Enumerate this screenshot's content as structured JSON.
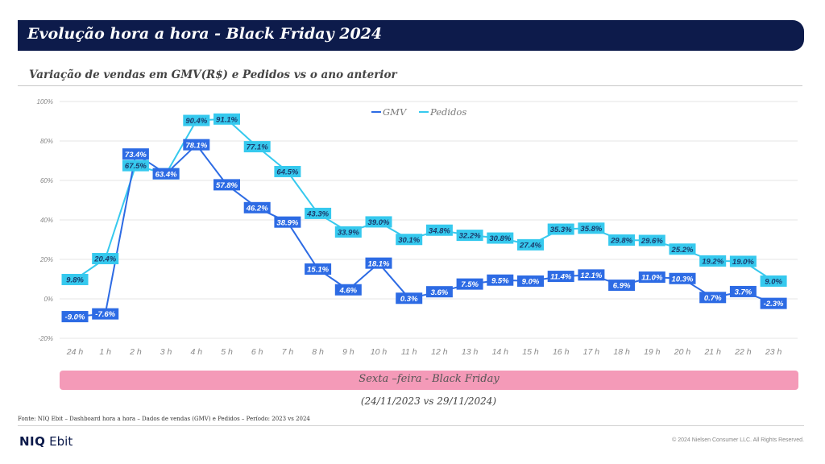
{
  "header": {
    "title": "Evolução hora a hora - Black Friday 2024",
    "subtitle": "Variação de vendas em GMV(R$) e Pedidos vs o ano anterior"
  },
  "chart_data": {
    "type": "line",
    "categories": [
      "24 h",
      "1 h",
      "2 h",
      "3 h",
      "4 h",
      "5 h",
      "6 h",
      "7 h",
      "8 h",
      "9 h",
      "10 h",
      "11 h",
      "12 h",
      "13 h",
      "14 h",
      "15 h",
      "16 h",
      "17 h",
      "18 h",
      "19 h",
      "20 h",
      "21 h",
      "22 h",
      "23 h"
    ],
    "series": [
      {
        "name": "GMV",
        "color": "#2d6be4",
        "values": [
          -9.0,
          -7.6,
          73.4,
          63.4,
          78.1,
          57.8,
          46.2,
          38.9,
          15.1,
          4.6,
          18.1,
          0.3,
          3.6,
          7.5,
          9.5,
          9.0,
          11.4,
          12.1,
          6.9,
          11.0,
          10.3,
          0.7,
          3.7,
          -2.3
        ],
        "labels": [
          "-9.0%",
          "-7.6%",
          "73.4%",
          "63.4%",
          "78.1%",
          "57.8%",
          "46.2%",
          "38.9%",
          "15.1%",
          "4.6%",
          "18.1%",
          "0.3%",
          "3.6%",
          "7.5%",
          "9.5%",
          "9.0%",
          "11.4%",
          "12.1%",
          "6.9%",
          "11.0%",
          "10.3%",
          "0.7%",
          "3.7%",
          "-2.3%"
        ]
      },
      {
        "name": "Pedidos",
        "color": "#36c9ee",
        "values": [
          9.8,
          20.4,
          67.5,
          63.4,
          90.4,
          91.1,
          77.1,
          64.5,
          43.3,
          33.9,
          39.0,
          30.1,
          34.8,
          32.2,
          30.8,
          27.4,
          35.3,
          35.8,
          29.8,
          29.6,
          25.2,
          19.2,
          19.0,
          9.0
        ],
        "labels": [
          "9.8%",
          "20.4%",
          "67.5%",
          "63.4%",
          "90.4%",
          "91.1%",
          "77.1%",
          "64.5%",
          "43.3%",
          "33.9%",
          "39.0%",
          "30.1%",
          "34.8%",
          "32.2%",
          "30.8%",
          "27.4%",
          "35.3%",
          "35.8%",
          "29.8%",
          "29.6%",
          "25.2%",
          "19.2%",
          "19.0%",
          "9.0%"
        ]
      }
    ],
    "ylim": [
      -20,
      100
    ],
    "y_ticks": [
      -20,
      0,
      20,
      40,
      60,
      80,
      100
    ],
    "y_tick_labels": [
      "-20%",
      "0%",
      "20%",
      "40%",
      "60%",
      "80%",
      "100%"
    ],
    "grid": true,
    "legend": "top-center"
  },
  "band": {
    "label": "Sexta –feira - Black Friday",
    "color": "#f49ab8"
  },
  "period": "(24/11/2023 vs 29/11/2024)",
  "footer": {
    "source": "Fonte: NIQ Ebit – Dashboard hora a hora – Dados de vendas (GMV) e Pedidos – Período: 2023 vs 2024",
    "logo_brand": "NIQ",
    "logo_product": "Ebit",
    "copyright": "© 2024 Nielsen Consumer LLC. All Rights Reserved."
  }
}
